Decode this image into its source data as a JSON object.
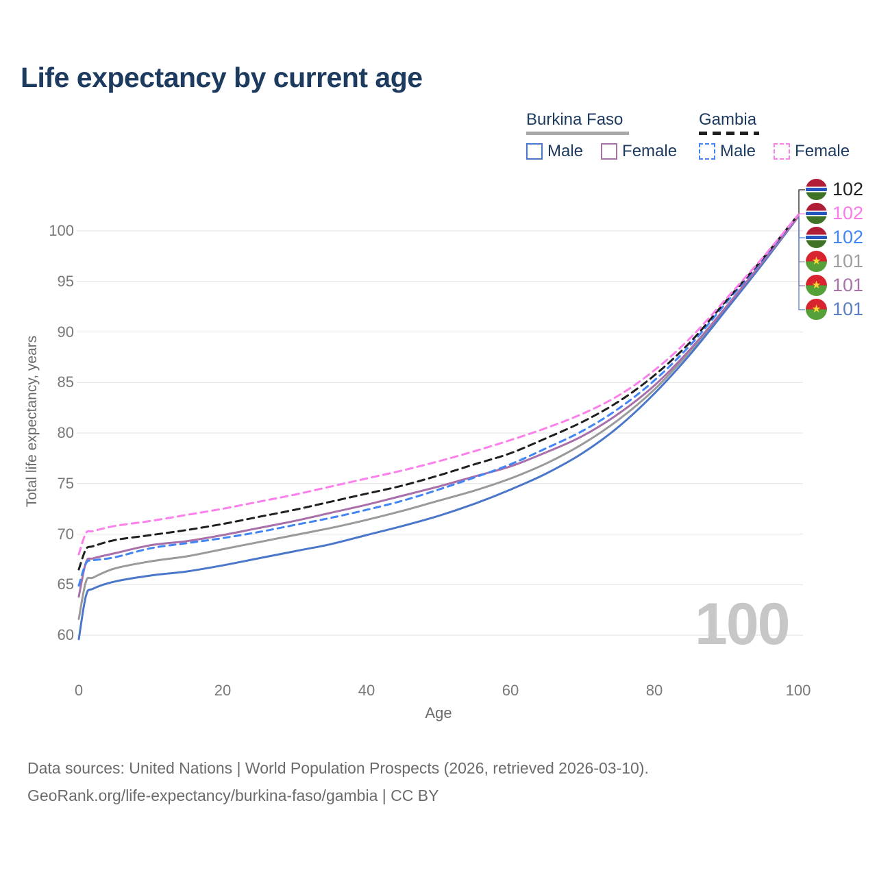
{
  "title": "Life expectancy by current age",
  "legend": {
    "groups": [
      {
        "label": "Burkina Faso",
        "line_style": "solid",
        "items": [
          {
            "label": "Male",
            "series": "bf_male"
          },
          {
            "label": "Female",
            "series": "bf_female"
          }
        ]
      },
      {
        "label": "Gambia",
        "line_style": "dashed",
        "items": [
          {
            "label": "Male",
            "series": "gm_male"
          },
          {
            "label": "Female",
            "series": "gm_female"
          }
        ]
      }
    ]
  },
  "icons": {
    "bf_star": "★"
  },
  "colors": {
    "title": "#1d3a5f",
    "grid": "#e6e6e6",
    "tick_text": "#787878",
    "axis_label_text": "#6b6b6b",
    "footer_text": "#6b6b6b",
    "watermark": "#c7c7c7"
  },
  "chart_data": {
    "type": "line",
    "title": "Life expectancy by current age",
    "xlabel": "Age",
    "ylabel": "Total life expectancy, years",
    "xlim": [
      0,
      100
    ],
    "ylim": [
      58,
      102
    ],
    "x_ticks": [
      0,
      20,
      40,
      60,
      80,
      100
    ],
    "y_ticks": [
      100,
      95,
      90,
      85,
      80,
      75,
      70,
      65,
      60
    ],
    "grid": "horizontal-only",
    "legend_position": "top-right",
    "age_indicator": "100",
    "ages": [
      0,
      1,
      2,
      5,
      10,
      15,
      20,
      25,
      30,
      35,
      40,
      45,
      50,
      55,
      60,
      65,
      70,
      75,
      80,
      85,
      90,
      95,
      100
    ],
    "series": [
      {
        "key": "bf_both",
        "name": "Burkina Faso",
        "country": "Burkina Faso",
        "sex": "Both",
        "color": "#9a9a9a",
        "dash": "",
        "values": [
          61.6,
          65.3,
          65.7,
          66.6,
          67.3,
          67.8,
          68.5,
          69.2,
          69.9,
          70.6,
          71.4,
          72.3,
          73.3,
          74.3,
          75.5,
          77.0,
          78.9,
          81.3,
          84.3,
          88.1,
          92.4,
          96.8,
          101.4
        ]
      },
      {
        "key": "bf_male",
        "name": "Burkina Faso Male",
        "country": "Burkina Faso",
        "sex": "Male",
        "color": "#4a77c9",
        "dash": "",
        "values": [
          59.6,
          63.9,
          64.6,
          65.3,
          65.9,
          66.3,
          66.9,
          67.6,
          68.3,
          69.0,
          69.9,
          70.8,
          71.8,
          73.0,
          74.4,
          76.0,
          78.0,
          80.6,
          83.9,
          87.8,
          92.2,
          96.7,
          101.4
        ]
      },
      {
        "key": "bf_female",
        "name": "Burkina Faso Female",
        "country": "Burkina Faso",
        "sex": "Female",
        "color": "#a86fa8",
        "dash": "",
        "values": [
          63.8,
          67.2,
          67.6,
          68.1,
          68.9,
          69.3,
          69.9,
          70.6,
          71.3,
          72.1,
          72.9,
          73.8,
          74.7,
          75.7,
          76.7,
          78.1,
          79.7,
          81.9,
          84.7,
          88.3,
          92.5,
          96.9,
          101.4
        ]
      },
      {
        "key": "gm_male",
        "name": "Gambia Male",
        "country": "Gambia",
        "sex": "Male",
        "color": "#4285f4",
        "dash": "9 7",
        "values": [
          64.9,
          67.1,
          67.4,
          67.7,
          68.6,
          69.1,
          69.6,
          70.2,
          70.9,
          71.6,
          72.4,
          73.3,
          74.4,
          75.6,
          76.9,
          78.5,
          80.2,
          82.4,
          85.2,
          88.7,
          92.9,
          97.1,
          101.6
        ]
      },
      {
        "key": "gm_both",
        "name": "Gambia",
        "country": "Gambia",
        "sex": "Both",
        "color": "#1f1f1f",
        "dash": "10 7",
        "values": [
          66.5,
          68.5,
          68.8,
          69.4,
          69.9,
          70.4,
          71.0,
          71.7,
          72.4,
          73.2,
          74.0,
          74.8,
          75.8,
          76.9,
          78.0,
          79.5,
          81.1,
          83.1,
          85.7,
          89.0,
          93.1,
          97.2,
          101.6
        ]
      },
      {
        "key": "gm_female",
        "name": "Gambia Female",
        "country": "Gambia",
        "sex": "Female",
        "color": "#fb80eb",
        "dash": "10 7",
        "values": [
          68.0,
          70.1,
          70.3,
          70.8,
          71.3,
          71.9,
          72.5,
          73.2,
          73.9,
          74.7,
          75.5,
          76.3,
          77.2,
          78.2,
          79.3,
          80.5,
          81.9,
          83.7,
          86.2,
          89.4,
          93.3,
          97.3,
          101.6
        ]
      }
    ],
    "end_labels": [
      {
        "label": "102",
        "color": "#222222",
        "country": "Gambia",
        "series": "gm_both"
      },
      {
        "label": "102",
        "color": "#fb7ae8",
        "country": "Gambia",
        "series": "gm_female"
      },
      {
        "label": "102",
        "color": "#4286f5",
        "country": "Gambia",
        "series": "gm_male"
      },
      {
        "label": "101",
        "color": "#9e9e9e",
        "country": "Burkina Faso",
        "series": "bf_both"
      },
      {
        "label": "101",
        "color": "#a872a8",
        "country": "Burkina Faso",
        "series": "bf_female"
      },
      {
        "label": "101",
        "color": "#5b7fc0",
        "country": "Burkina Faso",
        "series": "bf_male"
      }
    ]
  },
  "footer": {
    "line1": "Data sources: United Nations | World Population Prospects (2026, retrieved 2026-03-10).",
    "line2": "GeoRank.org/life-expectancy/burkina-faso/gambia | CC BY"
  }
}
